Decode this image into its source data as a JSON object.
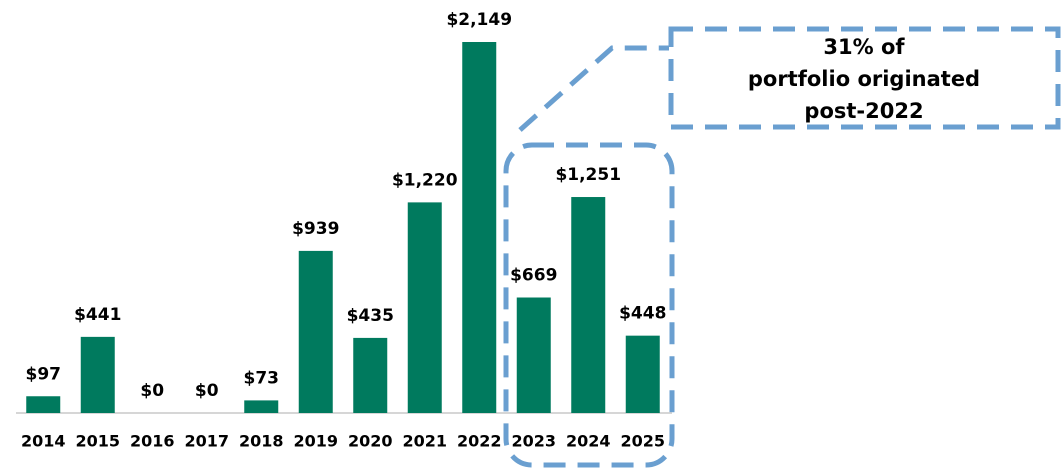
{
  "chart_data": {
    "type": "bar",
    "categories": [
      "2014",
      "2015",
      "2016",
      "2017",
      "2018",
      "2019",
      "2020",
      "2021",
      "2022",
      "2023",
      "2024",
      "2025"
    ],
    "values": [
      97,
      441,
      0,
      0,
      73,
      939,
      435,
      1220,
      2149,
      669,
      1251,
      448
    ],
    "value_labels": [
      "$97",
      "$441",
      "$0",
      "$0",
      "$73",
      "$939",
      "$435",
      "$1,220",
      "$2,149",
      "$669",
      "$1,251",
      "$448"
    ],
    "color": "#007a5e",
    "annotation": [
      "31% of",
      "portfolio originated",
      "post-2022"
    ]
  }
}
